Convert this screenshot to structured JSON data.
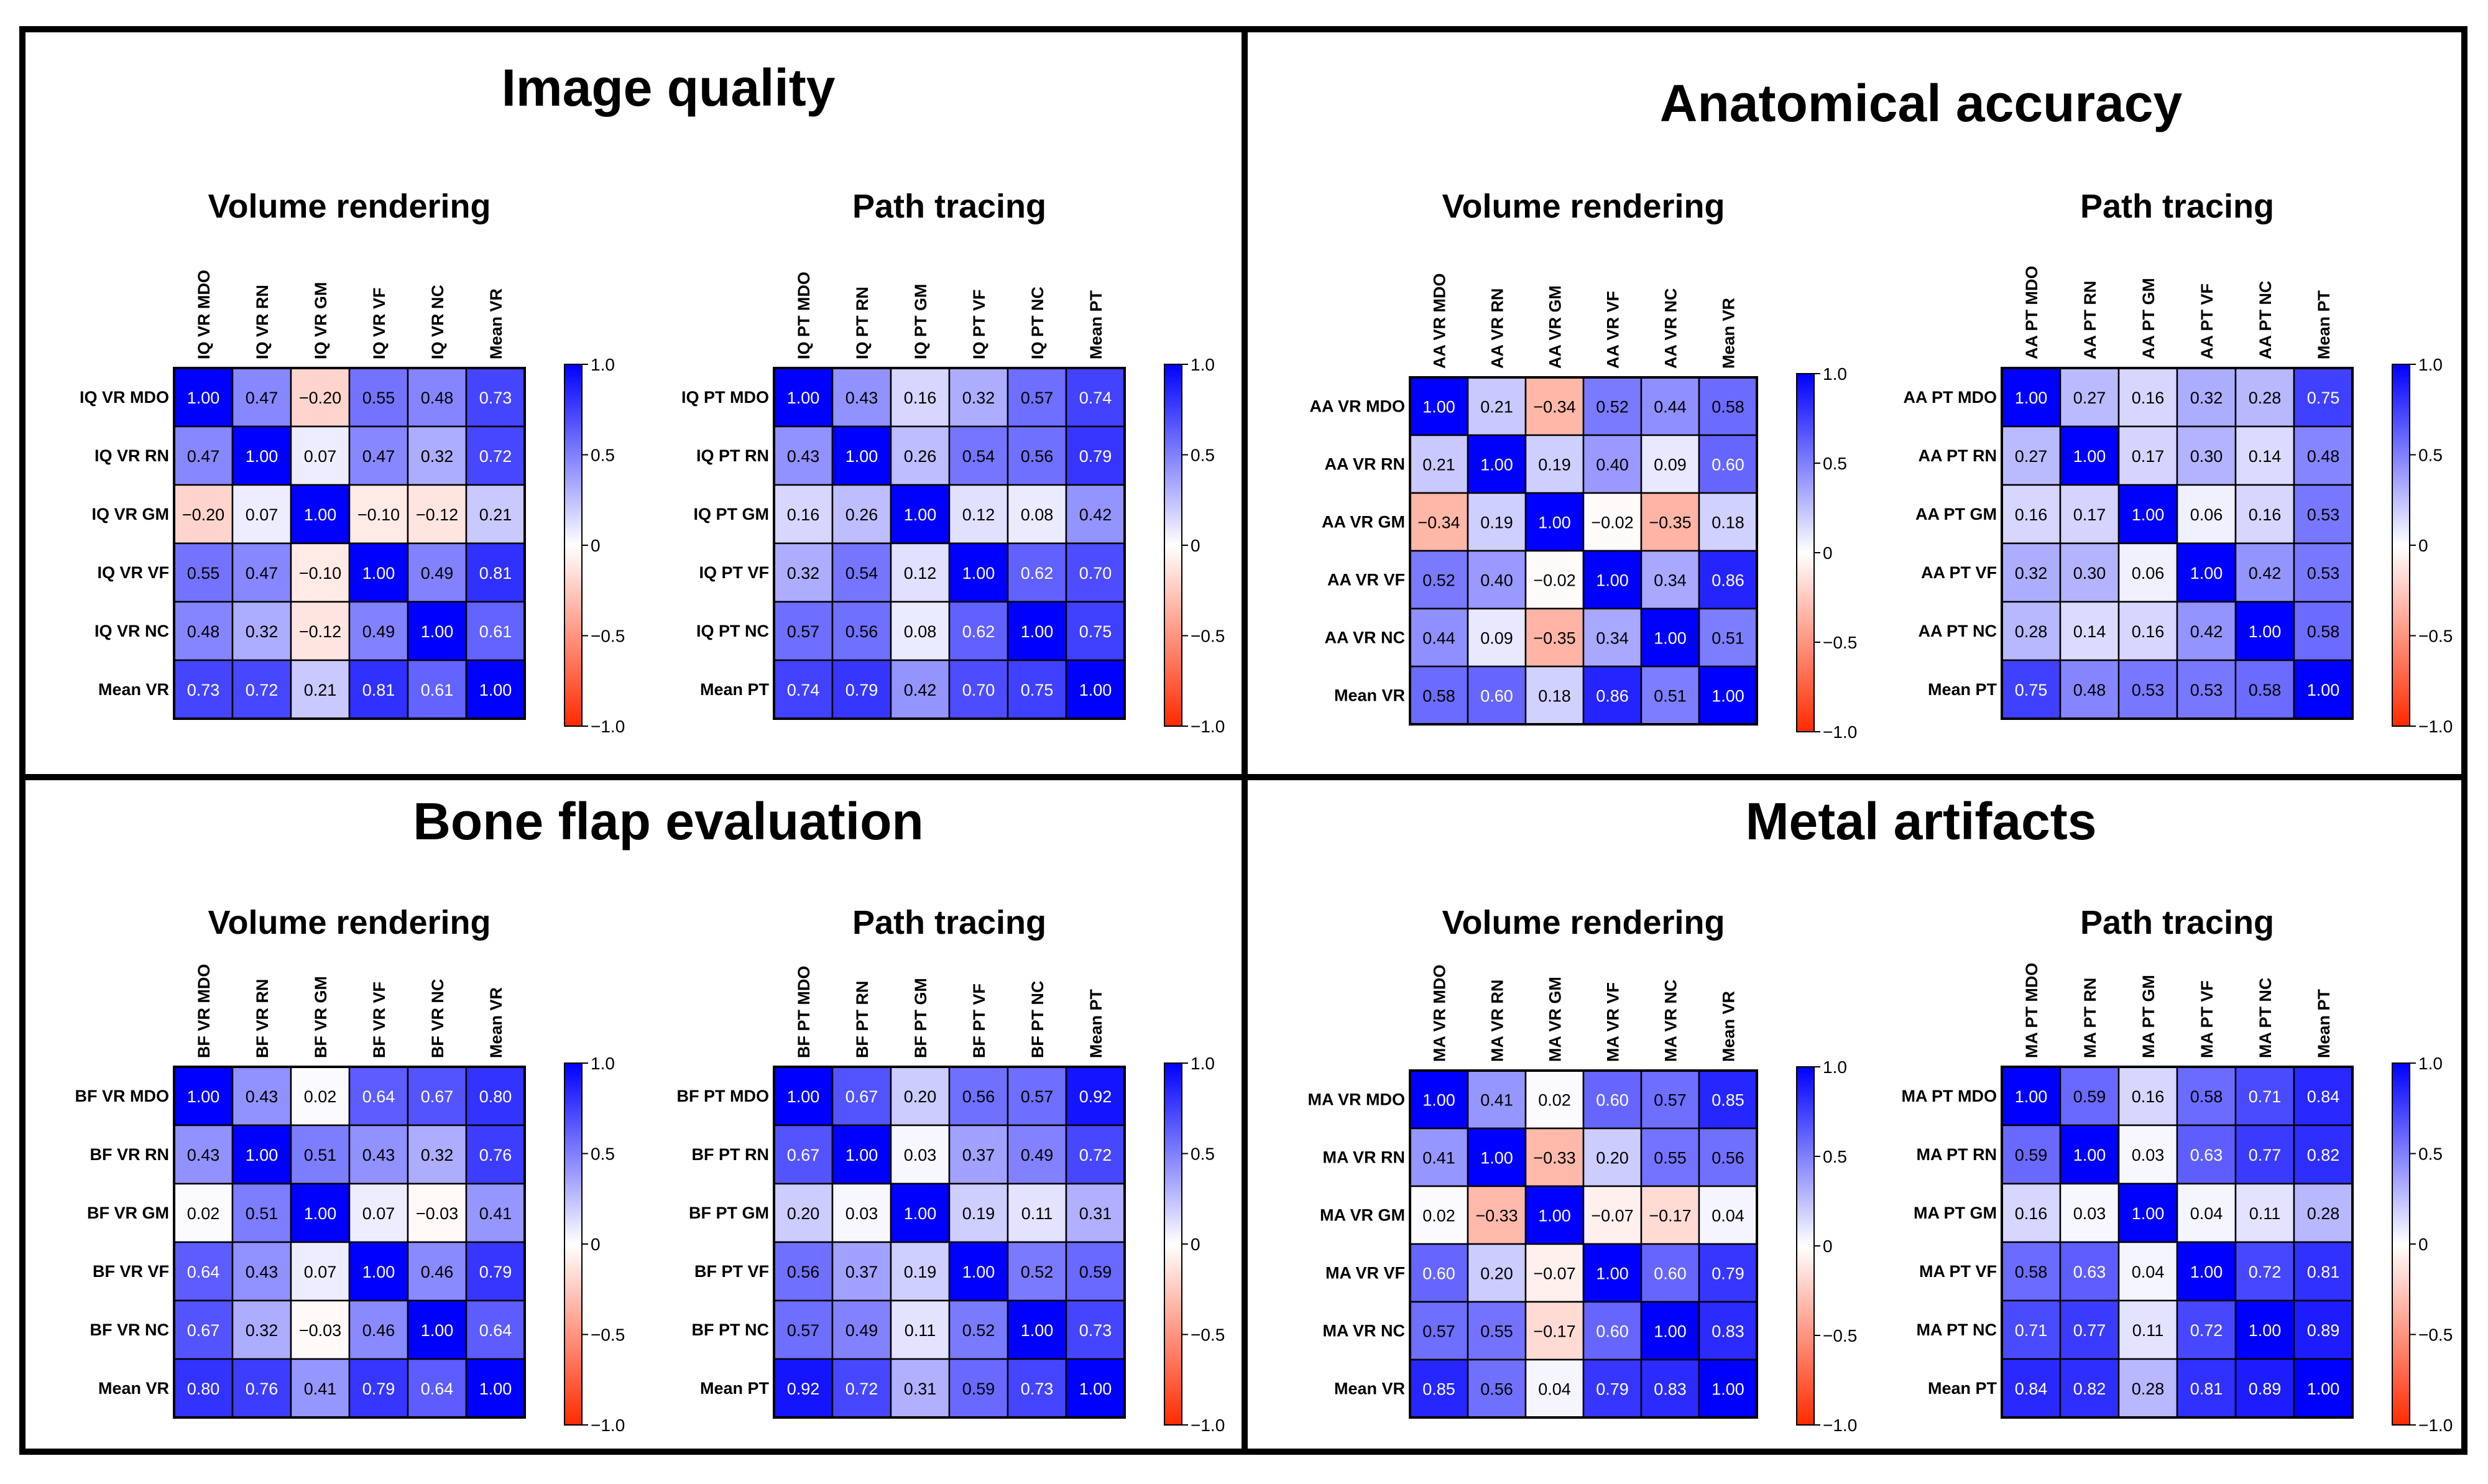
{
  "colors": {
    "high": "#0000ff",
    "mid": "#ffffff",
    "low": "#ff2a00",
    "frame": "#000000"
  },
  "colorbar_ticks": [
    "1.0",
    "0.5",
    "0",
    "−0.5",
    "−1.0"
  ],
  "chart_data": [
    {
      "title": "Image quality",
      "charts": [
        {
          "type": "heatmap",
          "title": "Volume rendering",
          "vlim": [
            -1,
            1
          ],
          "labels": [
            "IQ VR MDO",
            "IQ VR RN",
            "IQ VR GM",
            "IQ VR VF",
            "IQ VR NC",
            "Mean VR"
          ],
          "values": [
            [
              1.0,
              0.47,
              -0.2,
              0.55,
              0.48,
              0.73
            ],
            [
              0.47,
              1.0,
              0.07,
              0.47,
              0.32,
              0.72
            ],
            [
              -0.2,
              0.07,
              1.0,
              -0.1,
              -0.12,
              0.21
            ],
            [
              0.55,
              0.47,
              -0.1,
              1.0,
              0.49,
              0.81
            ],
            [
              0.48,
              0.32,
              -0.12,
              0.49,
              1.0,
              0.61
            ],
            [
              0.73,
              0.72,
              0.21,
              0.81,
              0.61,
              1.0
            ]
          ]
        },
        {
          "type": "heatmap",
          "title": "Path tracing",
          "vlim": [
            -1,
            1
          ],
          "labels": [
            "IQ PT MDO",
            "IQ PT RN",
            "IQ PT GM",
            "IQ PT VF",
            "IQ PT NC",
            "Mean PT"
          ],
          "values": [
            [
              1.0,
              0.43,
              0.16,
              0.32,
              0.57,
              0.74
            ],
            [
              0.43,
              1.0,
              0.26,
              0.54,
              0.56,
              0.79
            ],
            [
              0.16,
              0.26,
              1.0,
              0.12,
              0.08,
              0.42
            ],
            [
              0.32,
              0.54,
              0.12,
              1.0,
              0.62,
              0.7
            ],
            [
              0.57,
              0.56,
              0.08,
              0.62,
              1.0,
              0.75
            ],
            [
              0.74,
              0.79,
              0.42,
              0.7,
              0.75,
              1.0
            ]
          ]
        }
      ]
    },
    {
      "title": "Anatomical accuracy",
      "charts": [
        {
          "type": "heatmap",
          "title": "Volume rendering",
          "vlim": [
            -1,
            1
          ],
          "labels": [
            "AA VR MDO",
            "AA VR RN",
            "AA VR GM",
            "AA VR VF",
            "AA VR NC",
            "Mean VR"
          ],
          "values": [
            [
              1.0,
              0.21,
              -0.34,
              0.52,
              0.44,
              0.58
            ],
            [
              0.21,
              1.0,
              0.19,
              0.4,
              0.09,
              0.6
            ],
            [
              -0.34,
              0.19,
              1.0,
              -0.02,
              -0.35,
              0.18
            ],
            [
              0.52,
              0.4,
              -0.02,
              1.0,
              0.34,
              0.86
            ],
            [
              0.44,
              0.09,
              -0.35,
              0.34,
              1.0,
              0.51
            ],
            [
              0.58,
              0.6,
              0.18,
              0.86,
              0.51,
              1.0
            ]
          ]
        },
        {
          "type": "heatmap",
          "title": "Path tracing",
          "vlim": [
            -1,
            1
          ],
          "labels": [
            "AA PT MDO",
            "AA PT RN",
            "AA PT GM",
            "AA PT VF",
            "AA PT NC",
            "Mean PT"
          ],
          "values": [
            [
              1.0,
              0.27,
              0.16,
              0.32,
              0.28,
              0.75
            ],
            [
              0.27,
              1.0,
              0.17,
              0.3,
              0.14,
              0.48
            ],
            [
              0.16,
              0.17,
              1.0,
              0.06,
              0.16,
              0.53
            ],
            [
              0.32,
              0.3,
              0.06,
              1.0,
              0.42,
              0.53
            ],
            [
              0.28,
              0.14,
              0.16,
              0.42,
              1.0,
              0.58
            ],
            [
              0.75,
              0.48,
              0.53,
              0.53,
              0.58,
              1.0
            ]
          ]
        }
      ]
    },
    {
      "title": "Bone flap evaluation",
      "charts": [
        {
          "type": "heatmap",
          "title": "Volume rendering",
          "vlim": [
            -1,
            1
          ],
          "labels": [
            "BF VR MDO",
            "BF VR RN",
            "BF VR GM",
            "BF VR VF",
            "BF VR NC",
            "Mean VR"
          ],
          "values": [
            [
              1.0,
              0.43,
              0.02,
              0.64,
              0.67,
              0.8
            ],
            [
              0.43,
              1.0,
              0.51,
              0.43,
              0.32,
              0.76
            ],
            [
              0.02,
              0.51,
              1.0,
              0.07,
              -0.03,
              0.41
            ],
            [
              0.64,
              0.43,
              0.07,
              1.0,
              0.46,
              0.79
            ],
            [
              0.67,
              0.32,
              -0.03,
              0.46,
              1.0,
              0.64
            ],
            [
              0.8,
              0.76,
              0.41,
              0.79,
              0.64,
              1.0
            ]
          ]
        },
        {
          "type": "heatmap",
          "title": "Path tracing",
          "vlim": [
            -1,
            1
          ],
          "labels": [
            "BF PT MDO",
            "BF PT RN",
            "BF PT GM",
            "BF PT VF",
            "BF PT NC",
            "Mean PT"
          ],
          "values": [
            [
              1.0,
              0.67,
              0.2,
              0.56,
              0.57,
              0.92
            ],
            [
              0.67,
              1.0,
              0.03,
              0.37,
              0.49,
              0.72
            ],
            [
              0.2,
              0.03,
              1.0,
              0.19,
              0.11,
              0.31
            ],
            [
              0.56,
              0.37,
              0.19,
              1.0,
              0.52,
              0.59
            ],
            [
              0.57,
              0.49,
              0.11,
              0.52,
              1.0,
              0.73
            ],
            [
              0.92,
              0.72,
              0.31,
              0.59,
              0.73,
              1.0
            ]
          ]
        }
      ]
    },
    {
      "title": "Metal artifacts",
      "charts": [
        {
          "type": "heatmap",
          "title": "Volume rendering",
          "vlim": [
            -1,
            1
          ],
          "labels": [
            "MA VR MDO",
            "MA VR RN",
            "MA VR GM",
            "MA VR VF",
            "MA VR NC",
            "Mean VR"
          ],
          "values": [
            [
              1.0,
              0.41,
              0.02,
              0.6,
              0.57,
              0.85
            ],
            [
              0.41,
              1.0,
              -0.33,
              0.2,
              0.55,
              0.56
            ],
            [
              0.02,
              -0.33,
              1.0,
              -0.07,
              -0.17,
              0.04
            ],
            [
              0.6,
              0.2,
              -0.07,
              1.0,
              0.6,
              0.79
            ],
            [
              0.57,
              0.55,
              -0.17,
              0.6,
              1.0,
              0.83
            ],
            [
              0.85,
              0.56,
              0.04,
              0.79,
              0.83,
              1.0
            ]
          ]
        },
        {
          "type": "heatmap",
          "title": "Path tracing",
          "vlim": [
            -1,
            1
          ],
          "labels": [
            "MA PT MDO",
            "MA PT RN",
            "MA PT GM",
            "MA PT VF",
            "MA PT NC",
            "Mean PT"
          ],
          "values": [
            [
              1.0,
              0.59,
              0.16,
              0.58,
              0.71,
              0.84
            ],
            [
              0.59,
              1.0,
              0.03,
              0.63,
              0.77,
              0.82
            ],
            [
              0.16,
              0.03,
              1.0,
              0.04,
              0.11,
              0.28
            ],
            [
              0.58,
              0.63,
              0.04,
              1.0,
              0.72,
              0.81
            ],
            [
              0.71,
              0.77,
              0.11,
              0.72,
              1.0,
              0.89
            ],
            [
              0.84,
              0.82,
              0.28,
              0.81,
              0.89,
              1.0
            ]
          ]
        }
      ]
    }
  ]
}
